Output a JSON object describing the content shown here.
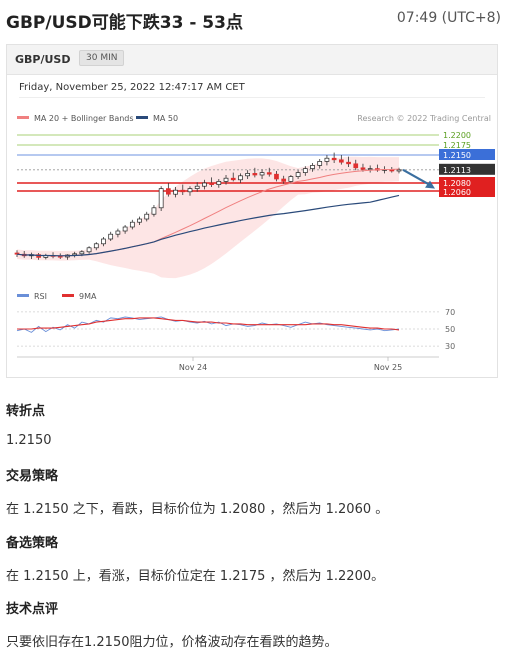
{
  "header": {
    "title": "GBP/USD可能下跌33 - 53点",
    "time": "07:49 (UTC+8)"
  },
  "chart_card": {
    "symbol": "GBP/USD",
    "timeframe": "30 MIN",
    "date": "Friday, November 25, 2022 12:47:17 AM CET",
    "legend_ma20": "MA 20 + Bollinger Bands",
    "legend_ma50": "MA 50",
    "source": "Research © 2022 Trading Central",
    "rsi_legend": "RSI",
    "rsi_ma_legend": "9MA",
    "colors": {
      "ma20": "#f08080",
      "ma50": "#2a4a7a",
      "bollinger_fill": "#fde0e0",
      "resistance": "#3b6fd8",
      "support": "#e02020",
      "target_up": "#8bc34a",
      "current": "#333333",
      "arrow": "#3a6fa0",
      "rsi": "#6a8fd8",
      "rsi_ma": "#e03030"
    }
  },
  "chart_data": {
    "type": "line",
    "x_labels": [
      "Nov 24",
      "Nov 25"
    ],
    "price_axis": {
      "levels": [
        {
          "label": "1.2200",
          "value": 1.22,
          "kind": "target-up"
        },
        {
          "label": "1.2175",
          "value": 1.2175,
          "kind": "target-up"
        },
        {
          "label": "1.2150",
          "value": 1.215,
          "kind": "pivot"
        },
        {
          "label": "1.2113",
          "value": 1.2113,
          "kind": "current"
        },
        {
          "label": "1.2080",
          "value": 1.208,
          "kind": "support"
        },
        {
          "label": "1.2060",
          "value": 1.206,
          "kind": "support"
        }
      ],
      "ylim": [
        1.187,
        1.222
      ]
    },
    "candles": [
      [
        1.1905,
        1.1912,
        1.1895,
        1.1902
      ],
      [
        1.1902,
        1.191,
        1.1893,
        1.1898
      ],
      [
        1.1898,
        1.1906,
        1.189,
        1.1901
      ],
      [
        1.1901,
        1.1905,
        1.1888,
        1.1894
      ],
      [
        1.1894,
        1.1903,
        1.1889,
        1.1899
      ],
      [
        1.1899,
        1.1907,
        1.1892,
        1.1897
      ],
      [
        1.1897,
        1.1904,
        1.189,
        1.1895
      ],
      [
        1.1895,
        1.1902,
        1.1888,
        1.19
      ],
      [
        1.19,
        1.1908,
        1.1894,
        1.1903
      ],
      [
        1.1903,
        1.1912,
        1.1897,
        1.1908
      ],
      [
        1.1908,
        1.1922,
        1.1903,
        1.1918
      ],
      [
        1.1918,
        1.1932,
        1.1912,
        1.1928
      ],
      [
        1.1928,
        1.1945,
        1.1922,
        1.194
      ],
      [
        1.194,
        1.1958,
        1.1935,
        1.1952
      ],
      [
        1.1952,
        1.1966,
        1.1944,
        1.196
      ],
      [
        1.196,
        1.1975,
        1.1953,
        1.197
      ],
      [
        1.197,
        1.1988,
        1.1964,
        1.1982
      ],
      [
        1.1982,
        1.1996,
        1.1975,
        1.199
      ],
      [
        1.199,
        1.2008,
        1.1984,
        1.2002
      ],
      [
        1.2002,
        1.2025,
        1.1996,
        1.2018
      ],
      [
        1.2018,
        1.2072,
        1.201,
        1.2066
      ],
      [
        1.2066,
        1.208,
        1.2046,
        1.2052
      ],
      [
        1.2052,
        1.207,
        1.2044,
        1.2062
      ],
      [
        1.2062,
        1.2076,
        1.205,
        1.2058
      ],
      [
        1.2058,
        1.2072,
        1.2048,
        1.2066
      ],
      [
        1.2066,
        1.2082,
        1.2058,
        1.2072
      ],
      [
        1.2072,
        1.2088,
        1.2064,
        1.208
      ],
      [
        1.208,
        1.2094,
        1.207,
        1.2076
      ],
      [
        1.2076,
        1.209,
        1.2068,
        1.2084
      ],
      [
        1.2084,
        1.21,
        1.2076,
        1.2092
      ],
      [
        1.2092,
        1.2106,
        1.2084,
        1.2088
      ],
      [
        1.2088,
        1.2104,
        1.208,
        1.2098
      ],
      [
        1.2098,
        1.2112,
        1.209,
        1.2104
      ],
      [
        1.2104,
        1.2118,
        1.2094,
        1.21
      ],
      [
        1.21,
        1.2114,
        1.209,
        1.2106
      ],
      [
        1.2106,
        1.2118,
        1.2096,
        1.2102
      ],
      [
        1.2102,
        1.211,
        1.2084,
        1.209
      ],
      [
        1.209,
        1.2098,
        1.2078,
        1.2084
      ],
      [
        1.2084,
        1.21,
        1.2078,
        1.2096
      ],
      [
        1.2096,
        1.2112,
        1.209,
        1.2106
      ],
      [
        1.2106,
        1.2122,
        1.2098,
        1.2116
      ],
      [
        1.2116,
        1.213,
        1.2108,
        1.2124
      ],
      [
        1.2124,
        1.214,
        1.2116,
        1.2134
      ],
      [
        1.2134,
        1.215,
        1.2124,
        1.2142
      ],
      [
        1.2142,
        1.2156,
        1.213,
        1.2138
      ],
      [
        1.2138,
        1.215,
        1.2126,
        1.2132
      ],
      [
        1.2132,
        1.2146,
        1.212,
        1.2128
      ],
      [
        1.2128,
        1.2138,
        1.2112,
        1.2118
      ],
      [
        1.2118,
        1.2128,
        1.2108,
        1.2114
      ],
      [
        1.2114,
        1.2124,
        1.2106,
        1.2116
      ],
      [
        1.2116,
        1.2126,
        1.2108,
        1.2112
      ],
      [
        1.2112,
        1.2122,
        1.2104,
        1.2114
      ],
      [
        1.2114,
        1.212,
        1.2106,
        1.211
      ],
      [
        1.211,
        1.2118,
        1.2104,
        1.2113
      ]
    ],
    "rsi": {
      "levels": [
        70,
        50,
        30
      ],
      "ylim": [
        22,
        78
      ],
      "rsi": [
        48,
        50,
        46,
        53,
        47,
        52,
        49,
        55,
        51,
        58,
        56,
        60,
        58,
        63,
        62,
        64,
        63,
        61,
        62,
        63,
        64,
        61,
        59,
        60,
        58,
        57,
        59,
        56,
        58,
        54,
        56,
        55,
        53,
        54,
        57,
        55,
        56,
        54,
        52,
        55,
        58,
        56,
        57,
        55,
        54,
        53,
        52,
        51,
        50,
        49,
        50,
        48,
        49,
        50
      ],
      "ma9": [
        50,
        50,
        50,
        51,
        51,
        51,
        52,
        53,
        54,
        55,
        56,
        58,
        59,
        60,
        61,
        62,
        62,
        63,
        63,
        63,
        62,
        61,
        60,
        60,
        59,
        58,
        58,
        58,
        57,
        57,
        56,
        56,
        55,
        55,
        55,
        55,
        55,
        55,
        55,
        55,
        55,
        56,
        56,
        56,
        55,
        55,
        54,
        53,
        52,
        51,
        51,
        50,
        50,
        49
      ]
    }
  },
  "sections": [
    {
      "heading": "转折点",
      "text": "1.2150"
    },
    {
      "heading": "交易策略",
      "text": "在 1.2150 之下，看跌，目标价位为 1.2080 ，然后为 1.2060 。"
    },
    {
      "heading": "备选策略",
      "text": "在 1.2150 上，看涨，目标价位定在 1.2175 ，然后为 1.2200。"
    },
    {
      "heading": "技术点评",
      "text": "只要依旧存在1.2150阻力位，价格波动存在看跌的趋势。"
    }
  ]
}
